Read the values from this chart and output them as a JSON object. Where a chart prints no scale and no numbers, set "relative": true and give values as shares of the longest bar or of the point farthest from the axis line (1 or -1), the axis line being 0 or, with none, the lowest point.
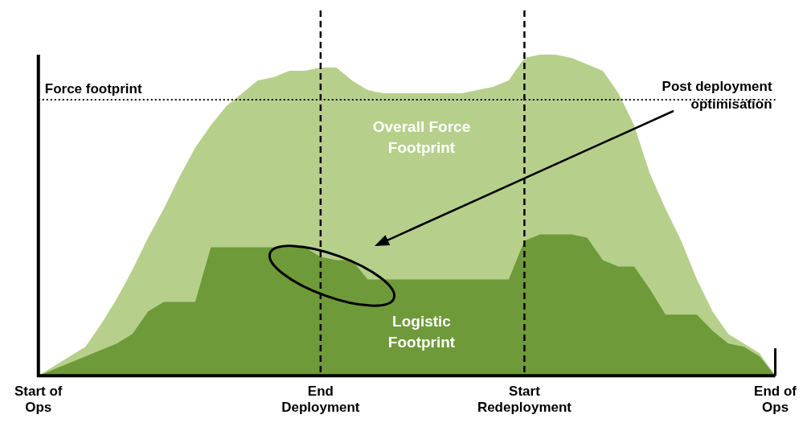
{
  "chart_data": {
    "type": "area",
    "relative": true,
    "legend": false,
    "grid": false,
    "categories": [
      "Start of Ops",
      null,
      null,
      null,
      null,
      null,
      null,
      null,
      null,
      null,
      null,
      null,
      null,
      null,
      null,
      null,
      null,
      null,
      "End Deployment",
      null,
      null,
      null,
      null,
      null,
      null,
      null,
      null,
      null,
      null,
      null,
      null,
      "Start Redeployment",
      null,
      null,
      null,
      null,
      null,
      null,
      null,
      null,
      null,
      null,
      null,
      null,
      null,
      null,
      null,
      "End of Ops"
    ],
    "series": [
      {
        "name": "Overall Force Footprint",
        "color": "#b6d08c",
        "values": [
          0,
          0.03,
          0.06,
          0.09,
          0.16,
          0.24,
          0.33,
          0.43,
          0.52,
          0.62,
          0.71,
          0.78,
          0.84,
          0.88,
          0.92,
          0.93,
          0.95,
          0.95,
          0.96,
          0.96,
          0.92,
          0.89,
          0.88,
          0.88,
          0.88,
          0.88,
          0.88,
          0.88,
          0.89,
          0.9,
          0.92,
          0.99,
          1.0,
          1.0,
          0.99,
          0.97,
          0.95,
          0.88,
          0.78,
          0.63,
          0.52,
          0.42,
          0.3,
          0.2,
          0.13,
          0.1,
          0.07,
          0
        ]
      },
      {
        "name": "Logistic Footprint",
        "color": "#6e9a3a",
        "values": [
          0,
          0.02,
          0.04,
          0.06,
          0.08,
          0.1,
          0.13,
          0.2,
          0.23,
          0.23,
          0.23,
          0.4,
          0.4,
          0.4,
          0.4,
          0.4,
          0.4,
          0.4,
          0.37,
          0.36,
          0.36,
          0.3,
          0.3,
          0.3,
          0.3,
          0.3,
          0.3,
          0.3,
          0.3,
          0.3,
          0.3,
          0.42,
          0.44,
          0.44,
          0.44,
          0.43,
          0.36,
          0.34,
          0.34,
          0.27,
          0.19,
          0.19,
          0.19,
          0.14,
          0.1,
          0.09,
          0.06,
          0
        ]
      }
    ],
    "ref_lines": [
      {
        "axis": "x",
        "value": "End Deployment",
        "line_style": "dashed",
        "color": "#000000"
      },
      {
        "axis": "x",
        "value": "Start Redeployment",
        "line_style": "dashed",
        "color": "#000000"
      },
      {
        "axis": "y",
        "value": 0.86,
        "label": "Force footprint",
        "line_style": "dotted",
        "color": "#000000"
      }
    ],
    "annotations": [
      "Post deployment optimisation"
    ]
  }
}
